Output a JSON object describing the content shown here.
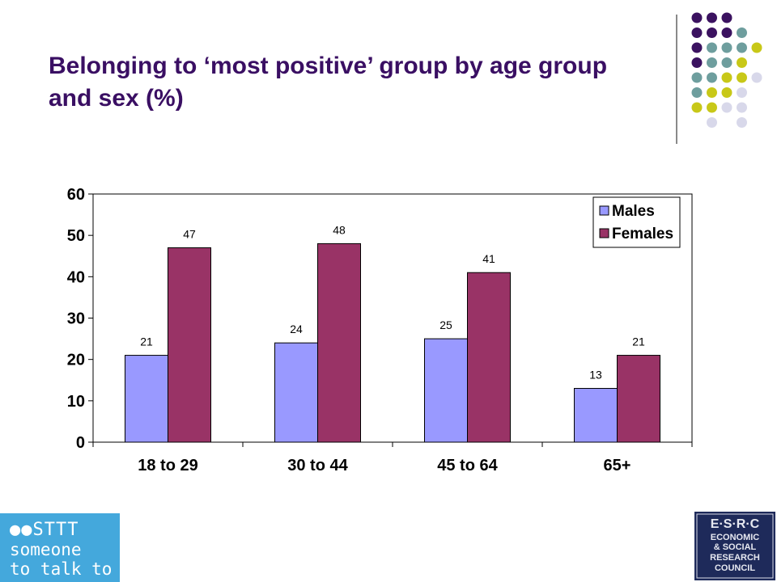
{
  "slide": {
    "title": "Belonging to ‘most positive’ group by age group and sex (%)"
  },
  "colors": {
    "title": "#3a0f63",
    "males_bar": "#9999ff",
    "females_bar": "#993366",
    "dot_purple": "#3b1260",
    "dot_teal": "#6e9e9e",
    "dot_yellow": "#c8c818",
    "dot_lavender": "#d8d8ea"
  },
  "chart_data": {
    "type": "bar",
    "categories": [
      "18 to 29",
      "30 to 44",
      "45 to 64",
      "65+"
    ],
    "series": [
      {
        "name": "Males",
        "values": [
          21,
          24,
          25,
          13
        ]
      },
      {
        "name": "Females",
        "values": [
          47,
          48,
          41,
          21
        ]
      }
    ],
    "ylim": [
      0,
      60
    ],
    "yticks": [
      0,
      10,
      20,
      30,
      40,
      50,
      60
    ],
    "grid": false,
    "legend": "top-right",
    "data_labels": true
  },
  "logos": {
    "left": {
      "line1": "STTT",
      "line2": "someone",
      "line3": "to talk to"
    },
    "right": {
      "line1": "E·S·R·C",
      "line2": "ECONOMIC",
      "line3": "& SOCIAL",
      "line4": "RESEARCH",
      "line5": "COUNCIL"
    }
  }
}
